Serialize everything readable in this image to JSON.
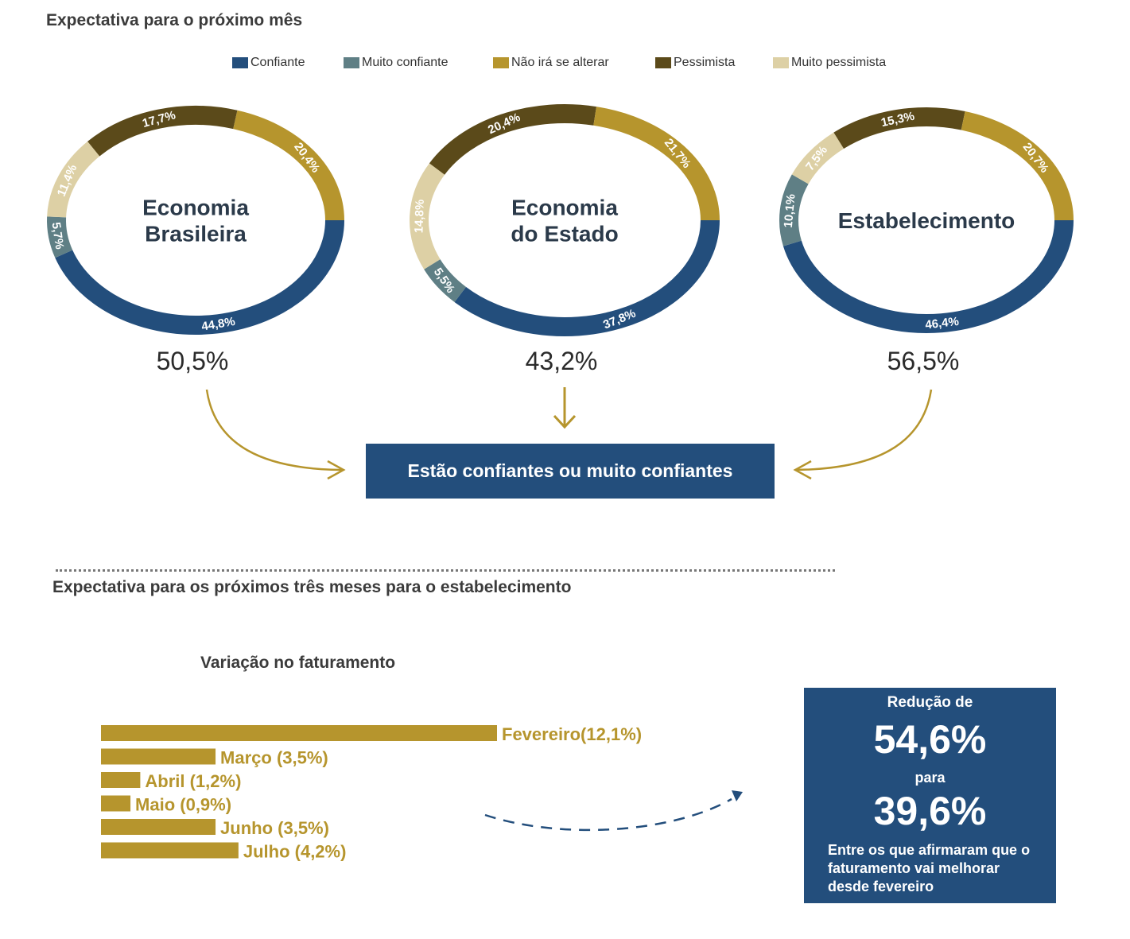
{
  "header": {
    "title": "Expectativa para o próximo mês",
    "section2_title": "Expectativa para os próximos três meses para o estabelecimento"
  },
  "colors": {
    "confiante": "#234e7c",
    "muito_confiante": "#5f7f85",
    "nao_ira_se_alterar": "#b6952d",
    "pessimista": "#5b4a1a",
    "muito_pessimista": "#ddd0a5",
    "box_bg": "#234e7c",
    "bar": "#b6952d"
  },
  "legend": [
    {
      "label": "Confiante",
      "color": "#234e7c"
    },
    {
      "label": "Muito confiante",
      "color": "#5f7f85"
    },
    {
      "label": "Não irá se alterar",
      "color": "#b6952d"
    },
    {
      "label": "Pessimista",
      "color": "#5b4a1a"
    },
    {
      "label": "Muito pessimista",
      "color": "#ddd0a5"
    }
  ],
  "chart_data": [
    {
      "type": "pie",
      "title": "Economia Brasileira",
      "title_lines": [
        "Economia",
        "Brasileira"
      ],
      "total_confident": "50,5%",
      "categories": [
        "Confiante",
        "Muito confiante",
        "Muito pessimista",
        "Pessimista",
        "Não irá se alterar"
      ],
      "values": [
        44.8,
        5.7,
        11.4,
        17.7,
        20.4
      ],
      "labels": [
        "44,8%",
        "5,7%",
        "11,4%",
        "17,7%",
        "20,4%"
      ]
    },
    {
      "type": "pie",
      "title": "Economia do Estado",
      "title_lines": [
        "Economia",
        "do Estado"
      ],
      "total_confident": "43,2%",
      "categories": [
        "Confiante",
        "Muito confiante",
        "Muito pessimista",
        "Pessimista",
        "Não irá se alterar"
      ],
      "values": [
        37.8,
        5.5,
        14.8,
        20.4,
        21.7
      ],
      "labels": [
        "37,8%",
        "5,5%",
        "14,8%",
        "20,4%",
        "21,7%"
      ]
    },
    {
      "type": "pie",
      "title": "Estabelecimento",
      "title_lines": [
        "Estabelecimento"
      ],
      "total_confident": "56,5%",
      "categories": [
        "Confiante",
        "Muito confiante",
        "Muito pessimista",
        "Pessimista",
        "Não irá se alterar"
      ],
      "values": [
        46.4,
        10.1,
        7.5,
        15.3,
        20.7
      ],
      "labels": [
        "46,4%",
        "10,1%",
        "7,5%",
        "15,3%",
        "20,7%"
      ]
    },
    {
      "type": "bar",
      "title": "Variação no faturamento",
      "categories": [
        "Fevereiro",
        "Março",
        "Abril",
        "Maio",
        "Junho",
        "Julho"
      ],
      "values": [
        12.1,
        3.5,
        1.2,
        0.9,
        3.5,
        4.2
      ],
      "labels": [
        "Fevereiro(12,1%)",
        "Março  (3,5%)",
        "Abril  (1,2%)",
        "Maio (0,9%)",
        "Junho  (3,5%)",
        "Julho  (4,2%)"
      ]
    }
  ],
  "callout": {
    "label": "Estão confiantes ou muito confiantes"
  },
  "summary": {
    "label1": "Redução de",
    "value1": "54,6%",
    "label2": "para",
    "value2": "39,6%",
    "note": "Entre os que afirmaram que o faturamento vai melhorar desde fevereiro"
  }
}
